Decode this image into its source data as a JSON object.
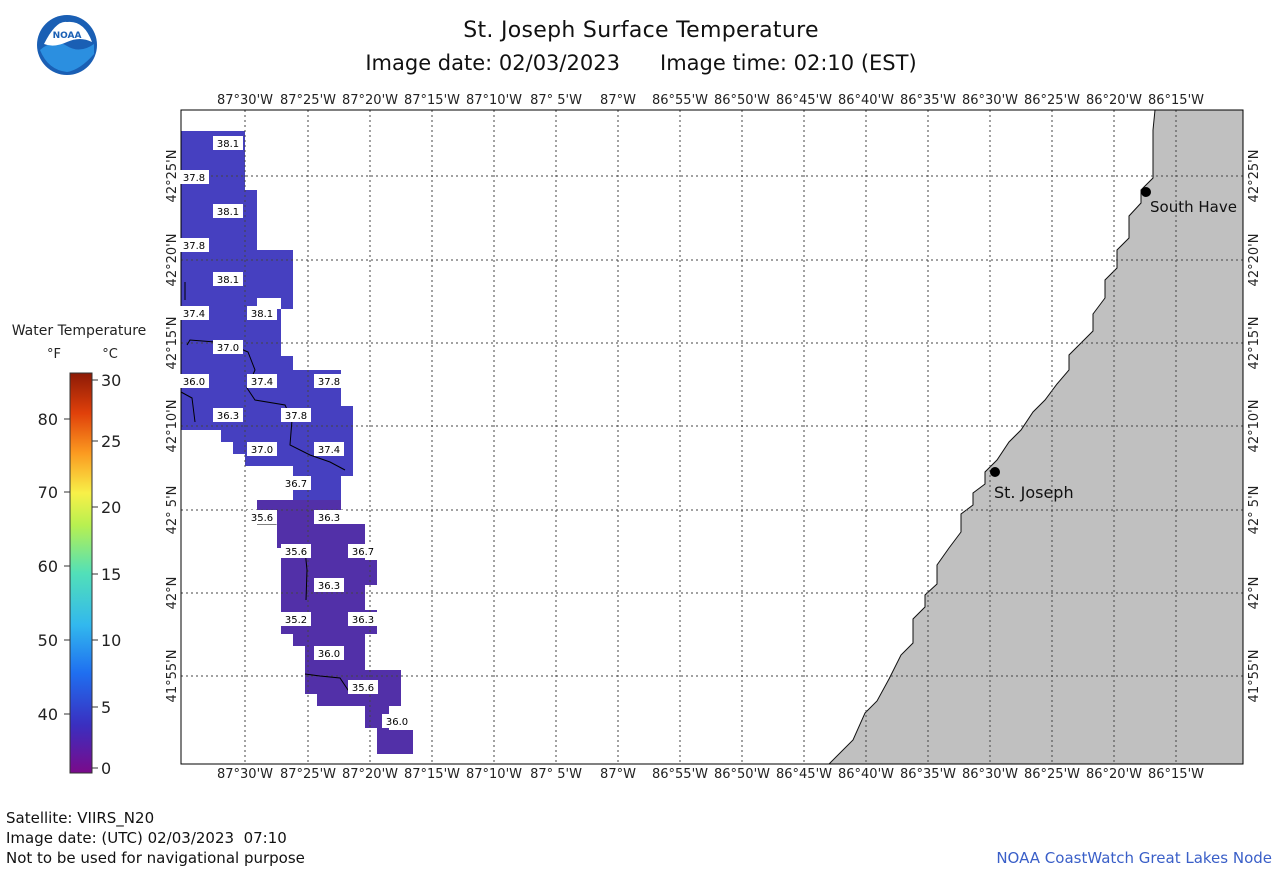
{
  "header": {
    "title": "St. Joseph Surface Temperature",
    "image_date_label": "Image date: 02/03/2023",
    "image_time_label": "Image time: 02:10 (EST)"
  },
  "logo": {
    "text": "NOAA"
  },
  "legend": {
    "title": "Water Temperature",
    "unit_f": "°F",
    "unit_c": "°C",
    "f_ticks": [
      "80",
      "70",
      "60",
      "50",
      "40"
    ],
    "c_ticks": [
      "30",
      "25",
      "20",
      "15",
      "10",
      "5",
      "0"
    ]
  },
  "axes": {
    "lon_labels": [
      "87°30'W",
      "87°25'W",
      "87°20'W",
      "87°15'W",
      "87°10'W",
      "87° 5'W",
      "87°W",
      "86°55'W",
      "86°50'W",
      "86°45'W",
      "86°40'W",
      "86°35'W",
      "86°30'W",
      "86°25'W",
      "86°20'W",
      "86°15'W"
    ],
    "lat_labels": [
      "42°25'N",
      "42°20'N",
      "42°15'N",
      "42°10'N",
      "42° 5'N",
      "42°N",
      "41°55'N"
    ]
  },
  "cities": [
    {
      "name": "South Have"
    },
    {
      "name": "St. Joseph"
    }
  ],
  "temperature_labels": [
    "38.1",
    "37.8",
    "38.1",
    "37.8",
    "38.1",
    "37.4",
    "38.1",
    "37.0",
    "36.0",
    "37.4",
    "37.8",
    "36.3",
    "37.8",
    "37.0",
    "37.4",
    "36.7",
    "35.6",
    "36.3",
    "35.6",
    "36.7",
    "36.3",
    "35.2",
    "36.3",
    "36.0",
    "35.6",
    "36.0"
  ],
  "colors": {
    "land": "#c0c0c0",
    "water_warm": "#4640c0",
    "water_cool": "#5230a8",
    "brand_link": "#3a5fc8"
  },
  "footer": {
    "satellite": "Satellite: VIIRS_N20",
    "utc_date": "Image date: (UTC) 02/03/2023  07:10",
    "disclaimer": "Not to be used for navigational purpose",
    "node": "NOAA CoastWatch Great Lakes Node"
  }
}
